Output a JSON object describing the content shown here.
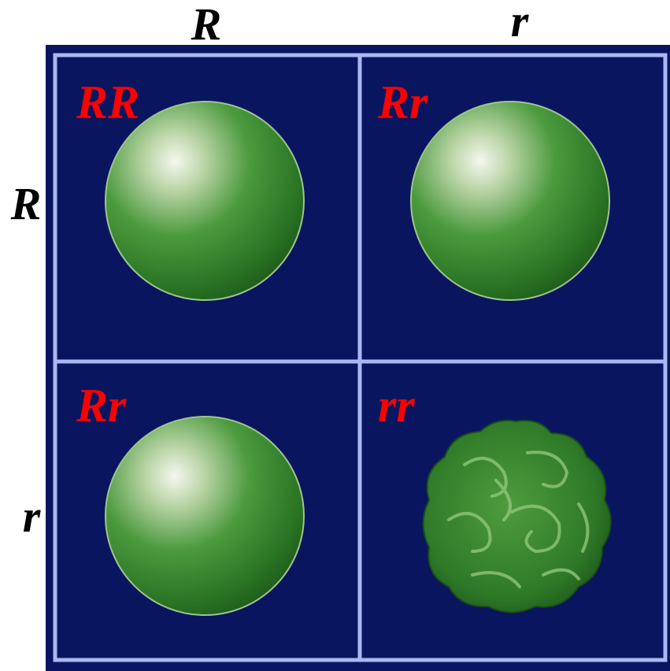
{
  "columns": [
    "R",
    "r"
  ],
  "rows": [
    "R",
    "r"
  ],
  "cells": [
    [
      "RR",
      "Rr"
    ],
    [
      "Rr",
      "rr"
    ]
  ]
}
